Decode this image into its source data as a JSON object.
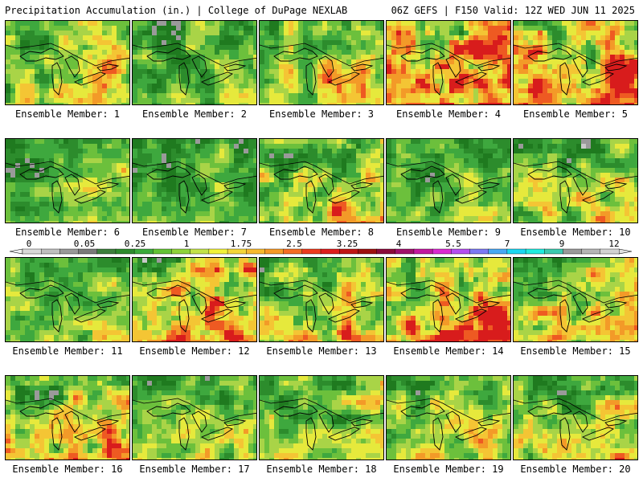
{
  "header": {
    "title": "Precipitation Accumulation (in.) | College of DuPage NEXLAB",
    "run_info": "06Z GEFS | F150 Valid: 12Z WED JUN 11 2025"
  },
  "caption_prefix": "Ensemble Member: ",
  "members": [
    1,
    2,
    3,
    4,
    5,
    6,
    7,
    8,
    9,
    10,
    11,
    12,
    13,
    14,
    15,
    16,
    17,
    18,
    19,
    20
  ],
  "colorbar": {
    "labels": [
      "0",
      "0.05",
      "0.25",
      "1",
      "1.75",
      "2.5",
      "3.25",
      "4",
      "5.5",
      "7",
      "9",
      "12"
    ],
    "colors": [
      "#d9d9d9",
      "#bfbfbf",
      "#999999",
      "#7a7a7a",
      "#3d7f3d",
      "#2e8b2e",
      "#3caa3c",
      "#63c335",
      "#8fd33a",
      "#c3e349",
      "#f2f23a",
      "#f5d63a",
      "#f7b92f",
      "#f79a27",
      "#f56d24",
      "#ee3b1f",
      "#dd1d1d",
      "#c01515",
      "#9e1010",
      "#8b0a3a",
      "#a0106b",
      "#c318a0",
      "#db2ad1",
      "#b44ef0",
      "#7c79f5",
      "#48a8f5",
      "#1dd7f2",
      "#20ece0",
      "#3ccab0",
      "#9a9a9a",
      "#b5b5b5",
      "#d2d2d2"
    ]
  },
  "map_palette": [
    "#1f7a1f",
    "#2c8c2c",
    "#3ea83e",
    "#6cc03c",
    "#a9d447",
    "#e6e93c",
    "#f4c534",
    "#f39a28",
    "#ee5a22",
    "#d81c1c",
    "#9a9a9a",
    "#c8c8c8"
  ],
  "intensity": [
    1.0,
    0.9,
    1.0,
    1.4,
    1.35,
    0.85,
    0.8,
    1.05,
    0.85,
    0.95,
    0.9,
    1.3,
    1.1,
    1.25,
    1.1,
    1.15,
    0.9,
    0.95,
    1.0,
    1.05
  ]
}
